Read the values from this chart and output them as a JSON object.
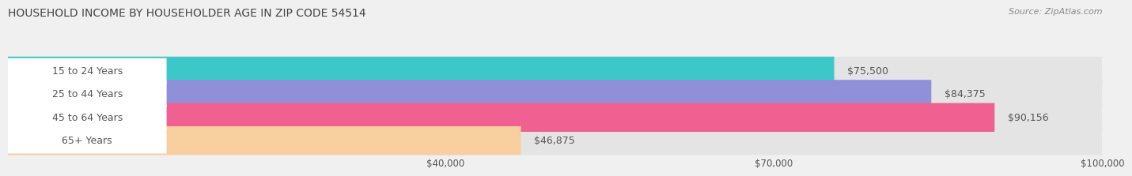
{
  "title": "HOUSEHOLD INCOME BY HOUSEHOLDER AGE IN ZIP CODE 54514",
  "source": "Source: ZipAtlas.com",
  "categories": [
    "15 to 24 Years",
    "25 to 44 Years",
    "45 to 64 Years",
    "65+ Years"
  ],
  "values": [
    75500,
    84375,
    90156,
    46875
  ],
  "bar_colors": [
    "#3cc8c8",
    "#9090d8",
    "#f06090",
    "#f8d0a0"
  ],
  "bar_labels": [
    "$75,500",
    "$84,375",
    "$90,156",
    "$46,875"
  ],
  "xlim_min": 0,
  "xlim_max": 100000,
  "x_ticks": [
    40000,
    70000,
    100000
  ],
  "x_tick_labels": [
    "$40,000",
    "$70,000",
    "$100,000"
  ],
  "background_color": "#f0f0f0",
  "bar_background_color": "#e4e4e4",
  "label_bg_color": "#ffffff",
  "title_fontsize": 10,
  "source_fontsize": 8,
  "label_fontsize": 9,
  "tick_fontsize": 8.5,
  "bar_height": 0.62
}
